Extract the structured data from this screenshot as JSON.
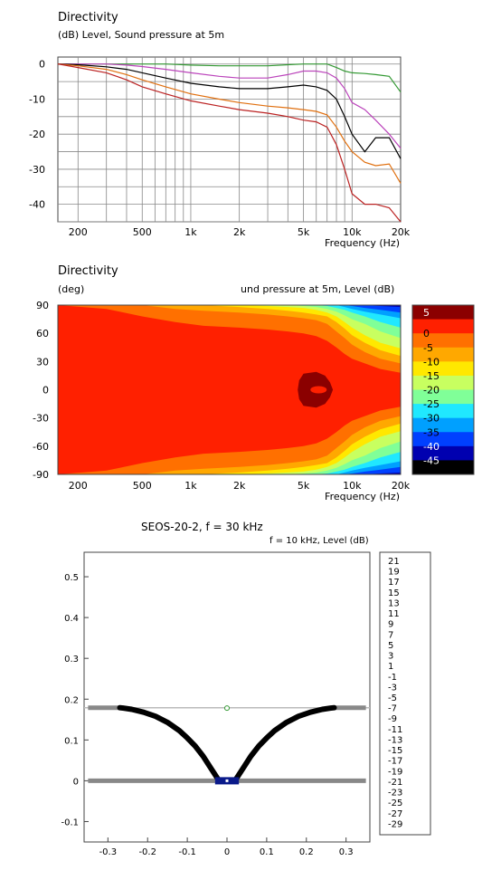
{
  "chart_data": [
    {
      "type": "line",
      "title": "Directivity",
      "subtitle": "(dB)  Level, Sound pressure at 5m",
      "xlabel": "Frequency  (Hz)",
      "xscale": "log",
      "xlim": [
        150,
        20000
      ],
      "ylim": [
        -45,
        2
      ],
      "x_tick_labels": [
        "200",
        "500",
        "1k",
        "2k",
        "5k",
        "10k",
        "20k"
      ],
      "x_tick_values": [
        200,
        500,
        1000,
        2000,
        5000,
        10000,
        20000
      ],
      "y_tick_labels": [
        "0",
        "-10",
        "-20",
        "-30",
        "-40"
      ],
      "y_tick_values": [
        0,
        -10,
        -20,
        -30,
        -40
      ],
      "grid": true,
      "x": [
        150,
        200,
        300,
        400,
        500,
        700,
        1000,
        1500,
        2000,
        3000,
        4000,
        5000,
        6000,
        7000,
        8000,
        9000,
        10000,
        12000,
        14000,
        17000,
        20000
      ],
      "series": [
        {
          "color": "#339933",
          "values": [
            0,
            0,
            0,
            0,
            0,
            0,
            -0.3,
            -0.5,
            -0.5,
            -0.5,
            -0.2,
            0,
            0,
            0,
            -1,
            -2,
            -2.5,
            -2.7,
            -3,
            -3.5,
            -8
          ]
        },
        {
          "color": "#bb44bb",
          "values": [
            0,
            0,
            0,
            -0.3,
            -0.7,
            -1.5,
            -2.5,
            -3.5,
            -4,
            -4,
            -3,
            -2,
            -2,
            -2.5,
            -4,
            -7,
            -11,
            -13,
            -16,
            -20,
            -24
          ]
        },
        {
          "color": "#000000",
          "values": [
            0,
            -0.2,
            -0.8,
            -1.5,
            -2.5,
            -4,
            -5.5,
            -6.5,
            -7,
            -7,
            -6.5,
            -6,
            -6.5,
            -7.5,
            -10,
            -15,
            -20,
            -25,
            -21,
            -21,
            -27
          ]
        },
        {
          "color": "#e07010",
          "values": [
            0,
            -0.5,
            -1.5,
            -3,
            -4.5,
            -6.5,
            -8.5,
            -10,
            -11,
            -12,
            -12.5,
            -13,
            -13.5,
            -14.5,
            -18,
            -22,
            -25,
            -28,
            -29,
            -28.5,
            -34
          ]
        },
        {
          "color": "#bb2222",
          "values": [
            0,
            -1,
            -2.5,
            -4.5,
            -6.5,
            -8.5,
            -10.5,
            -12,
            -13,
            -14,
            -15,
            -16,
            -16.5,
            -18,
            -23,
            -30,
            -37,
            -40,
            -40,
            -41,
            -45
          ]
        }
      ]
    },
    {
      "type": "heatmap",
      "title": "Directivity",
      "ylabel": "(deg)",
      "subtitle": "und pressure at 5m, Level  (dB)",
      "xlabel": "Frequency  (Hz)",
      "xscale": "log",
      "xlim": [
        150,
        20000
      ],
      "ylim": [
        -90,
        90
      ],
      "x_tick_labels": [
        "200",
        "500",
        "1k",
        "2k",
        "5k",
        "10k",
        "20k"
      ],
      "x_tick_values": [
        200,
        500,
        1000,
        2000,
        5000,
        10000,
        20000
      ],
      "y_tick_labels": [
        "90",
        "60",
        "30",
        "0",
        "-30",
        "-60",
        "-90"
      ],
      "y_tick_values": [
        90,
        60,
        30,
        0,
        -30,
        -60,
        -90
      ],
      "colorbar_labels": [
        "5",
        "0",
        "-5",
        "-10",
        "-15",
        "-20",
        "-25",
        "-30",
        "-35",
        "-40",
        "-45"
      ],
      "colorbar_colors": [
        "#8b0000",
        "#ff2000",
        "#ff7000",
        "#ffa800",
        "#ffe800",
        "#c8ff60",
        "#80ff98",
        "#20e8ff",
        "#00a0ff",
        "#0040ff",
        "#0000b0",
        "#000000"
      ]
    },
    {
      "type": "scatter",
      "title": "SEOS-20-2,   f = 30 kHz",
      "subtitle": "f = 10 kHz, Level  (dB)",
      "xlim": [
        -0.36,
        0.36
      ],
      "ylim": [
        -0.15,
        0.56
      ],
      "x_tick_labels": [
        "-0.3",
        "-0.2",
        "-0.1",
        "0",
        "0.1",
        "0.2",
        "0.3"
      ],
      "x_tick_values": [
        -0.3,
        -0.2,
        -0.1,
        0,
        0.1,
        0.2,
        0.3
      ],
      "y_tick_labels": [
        "0.5",
        "0.4",
        "0.3",
        "0.2",
        "0.1",
        "0",
        "-0.1"
      ],
      "y_tick_values": [
        0.5,
        0.4,
        0.3,
        0.2,
        0.1,
        0,
        -0.1
      ],
      "legend_values": [
        "21",
        "19",
        "17",
        "15",
        "13",
        "11",
        "9",
        "7",
        "5",
        "3",
        "1",
        "-1",
        "-3",
        "-5",
        "-7",
        "-9",
        "-11",
        "-13",
        "-15",
        "-17",
        "-19",
        "-21",
        "-23",
        "-25",
        "-27",
        "-29"
      ],
      "profile_x": [
        0.02,
        0.04,
        0.06,
        0.08,
        0.1,
        0.12,
        0.15,
        0.18,
        0.21,
        0.24,
        0.26,
        0.27
      ],
      "profile_y": [
        0.0,
        0.03,
        0.06,
        0.085,
        0.105,
        0.123,
        0.143,
        0.158,
        0.168,
        0.175,
        0.178,
        0.179
      ],
      "baseline_y": 0,
      "mouth_y": 0.179,
      "marker": {
        "x": 0,
        "y": 0.178
      }
    }
  ]
}
